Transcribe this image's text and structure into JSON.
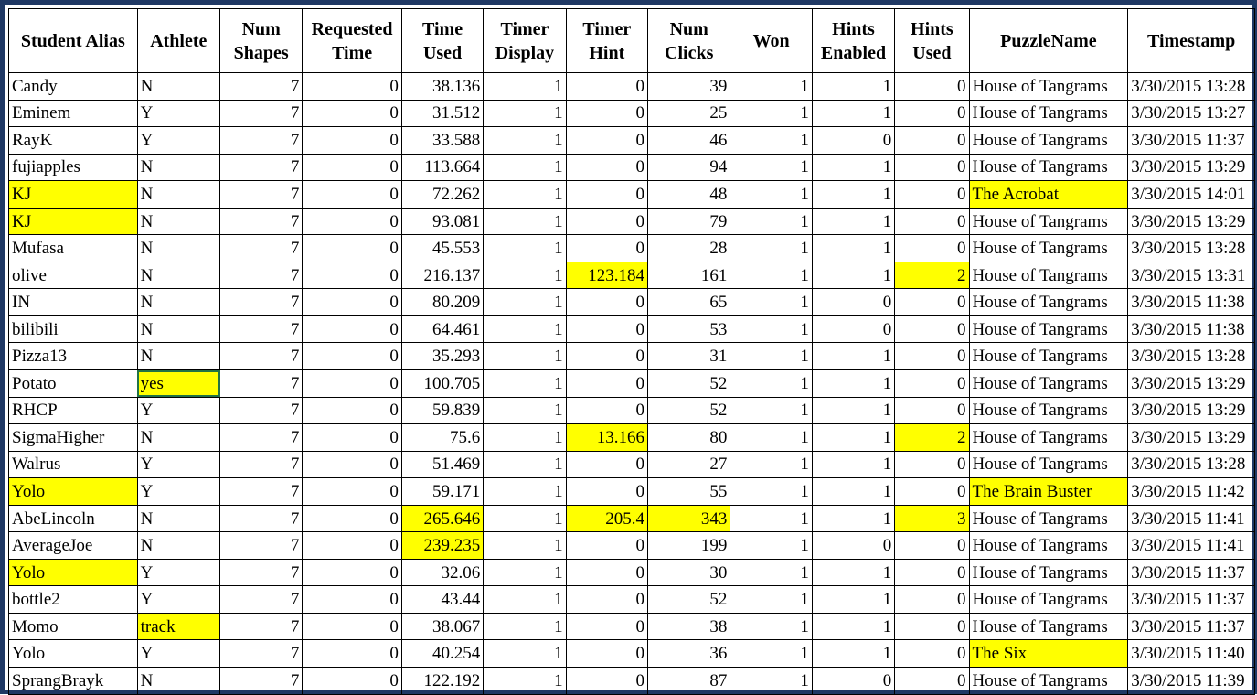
{
  "columns": [
    {
      "key": "alias",
      "label": "Student Alias",
      "width": 140,
      "align": "txt"
    },
    {
      "key": "athlete",
      "label": "Athlete",
      "width": 90,
      "align": "txt"
    },
    {
      "key": "num_shapes",
      "label": "Num Shapes",
      "width": 90,
      "align": "num"
    },
    {
      "key": "requested_time",
      "label": "Requested Time",
      "width": 108,
      "align": "num"
    },
    {
      "key": "time_used",
      "label": "Time Used",
      "width": 89,
      "align": "num"
    },
    {
      "key": "timer_display",
      "label": "Timer Display",
      "width": 90,
      "align": "num"
    },
    {
      "key": "timer_hint",
      "label": "Timer Hint",
      "width": 89,
      "align": "num"
    },
    {
      "key": "num_clicks",
      "label": "Num Clicks",
      "width": 90,
      "align": "num"
    },
    {
      "key": "won",
      "label": "Won",
      "width": 89,
      "align": "num"
    },
    {
      "key": "hints_enabled",
      "label": "Hints Enabled",
      "width": 90,
      "align": "num"
    },
    {
      "key": "hints_used",
      "label": "Hints Used",
      "width": 81,
      "align": "num"
    },
    {
      "key": "puzzle_name",
      "label": "PuzzleName",
      "width": 173,
      "align": "txt"
    },
    {
      "key": "timestamp",
      "label": "Timestamp",
      "width": 138,
      "align": "txt"
    }
  ],
  "rows": [
    {
      "cells": [
        "Candy",
        "N",
        "7",
        "0",
        "38.136",
        "1",
        "0",
        "39",
        "1",
        "1",
        "0",
        "House of Tangrams",
        "3/30/2015 13:28"
      ],
      "hl": []
    },
    {
      "cells": [
        "Eminem",
        "Y",
        "7",
        "0",
        "31.512",
        "1",
        "0",
        "25",
        "1",
        "1",
        "0",
        "House of Tangrams",
        "3/30/2015 13:27"
      ],
      "hl": []
    },
    {
      "cells": [
        "RayK",
        "Y",
        "7",
        "0",
        "33.588",
        "1",
        "0",
        "46",
        "1",
        "0",
        "0",
        "House of Tangrams",
        "3/30/2015 11:37"
      ],
      "hl": []
    },
    {
      "cells": [
        "fujiapples",
        "N",
        "7",
        "0",
        "113.664",
        "1",
        "0",
        "94",
        "1",
        "1",
        "0",
        "House of Tangrams",
        "3/30/2015 13:29"
      ],
      "hl": []
    },
    {
      "cells": [
        "KJ",
        "N",
        "7",
        "0",
        "72.262",
        "1",
        "0",
        "48",
        "1",
        "1",
        "0",
        "The Acrobat",
        "3/30/2015 14:01"
      ],
      "hl": [
        0,
        11
      ]
    },
    {
      "cells": [
        "KJ",
        "N",
        "7",
        "0",
        "93.081",
        "1",
        "0",
        "79",
        "1",
        "1",
        "0",
        "House of Tangrams",
        "3/30/2015 13:29"
      ],
      "hl": [
        0
      ]
    },
    {
      "cells": [
        "Mufasa",
        "N",
        "7",
        "0",
        "45.553",
        "1",
        "0",
        "28",
        "1",
        "1",
        "0",
        "House of Tangrams",
        "3/30/2015 13:28"
      ],
      "hl": []
    },
    {
      "cells": [
        "olive",
        "N",
        "7",
        "0",
        "216.137",
        "1",
        "123.184",
        "161",
        "1",
        "1",
        "2",
        "House of Tangrams",
        "3/30/2015 13:31"
      ],
      "hl": [
        6,
        10
      ]
    },
    {
      "cells": [
        "IN",
        "N",
        "7",
        "0",
        "80.209",
        "1",
        "0",
        "65",
        "1",
        "0",
        "0",
        "House of Tangrams",
        "3/30/2015 11:38"
      ],
      "hl": []
    },
    {
      "cells": [
        "bilibili",
        "N",
        "7",
        "0",
        "64.461",
        "1",
        "0",
        "53",
        "1",
        "0",
        "0",
        "House of Tangrams",
        "3/30/2015 11:38"
      ],
      "hl": []
    },
    {
      "cells": [
        "Pizza13",
        "N",
        "7",
        "0",
        "35.293",
        "1",
        "0",
        "31",
        "1",
        "1",
        "0",
        "House of Tangrams",
        "3/30/2015 13:28"
      ],
      "hl": []
    },
    {
      "cells": [
        "Potato",
        "yes",
        "7",
        "0",
        "100.705",
        "1",
        "0",
        "52",
        "1",
        "1",
        "0",
        "House of Tangrams",
        "3/30/2015 13:29"
      ],
      "hl": [
        1
      ],
      "sel": 1
    },
    {
      "cells": [
        "RHCP",
        "Y",
        "7",
        "0",
        "59.839",
        "1",
        "0",
        "52",
        "1",
        "1",
        "0",
        "House of Tangrams",
        "3/30/2015 13:29"
      ],
      "hl": []
    },
    {
      "cells": [
        "SigmaHigher",
        "N",
        "7",
        "0",
        "75.6",
        "1",
        "13.166",
        "80",
        "1",
        "1",
        "2",
        "House of Tangrams",
        "3/30/2015 13:29"
      ],
      "hl": [
        6,
        10
      ]
    },
    {
      "cells": [
        "Walrus",
        "Y",
        "7",
        "0",
        "51.469",
        "1",
        "0",
        "27",
        "1",
        "1",
        "0",
        "House of Tangrams",
        "3/30/2015 13:28"
      ],
      "hl": []
    },
    {
      "cells": [
        "Yolo",
        "Y",
        "7",
        "0",
        "59.171",
        "1",
        "0",
        "55",
        "1",
        "1",
        "0",
        "The Brain Buster",
        "3/30/2015 11:42"
      ],
      "hl": [
        0,
        11
      ]
    },
    {
      "cells": [
        "AbeLincoln",
        "N",
        "7",
        "0",
        "265.646",
        "1",
        "205.4",
        "343",
        "1",
        "1",
        "3",
        "House of Tangrams",
        "3/30/2015 11:41"
      ],
      "hl": [
        4,
        6,
        7,
        10
      ]
    },
    {
      "cells": [
        "AverageJoe",
        "N",
        "7",
        "0",
        "239.235",
        "1",
        "0",
        "199",
        "1",
        "0",
        "0",
        "House of Tangrams",
        "3/30/2015 11:41"
      ],
      "hl": [
        4
      ]
    },
    {
      "cells": [
        "Yolo",
        "Y",
        "7",
        "0",
        "32.06",
        "1",
        "0",
        "30",
        "1",
        "1",
        "0",
        "House of Tangrams",
        "3/30/2015 11:37"
      ],
      "hl": [
        0
      ]
    },
    {
      "cells": [
        "bottle2",
        "Y",
        "7",
        "0",
        "43.44",
        "1",
        "0",
        "52",
        "1",
        "1",
        "0",
        "House of Tangrams",
        "3/30/2015 11:37"
      ],
      "hl": []
    },
    {
      "cells": [
        "Momo",
        "track",
        "7",
        "0",
        "38.067",
        "1",
        "0",
        "38",
        "1",
        "1",
        "0",
        "House of Tangrams",
        "3/30/2015 11:37"
      ],
      "hl": [
        1
      ]
    },
    {
      "cells": [
        "Yolo",
        "Y",
        "7",
        "0",
        "40.254",
        "1",
        "0",
        "36",
        "1",
        "1",
        "0",
        "The Six",
        "3/30/2015 11:40"
      ],
      "hl": [
        11
      ]
    },
    {
      "cells": [
        "SprangBrayk",
        "N",
        "7",
        "0",
        "122.192",
        "1",
        "0",
        "87",
        "1",
        "0",
        "0",
        "House of Tangrams",
        "3/30/2015 11:39"
      ],
      "hl": []
    }
  ],
  "colors": {
    "highlight": "#ffff00",
    "border": "#1f3864",
    "selection": "#217346"
  }
}
